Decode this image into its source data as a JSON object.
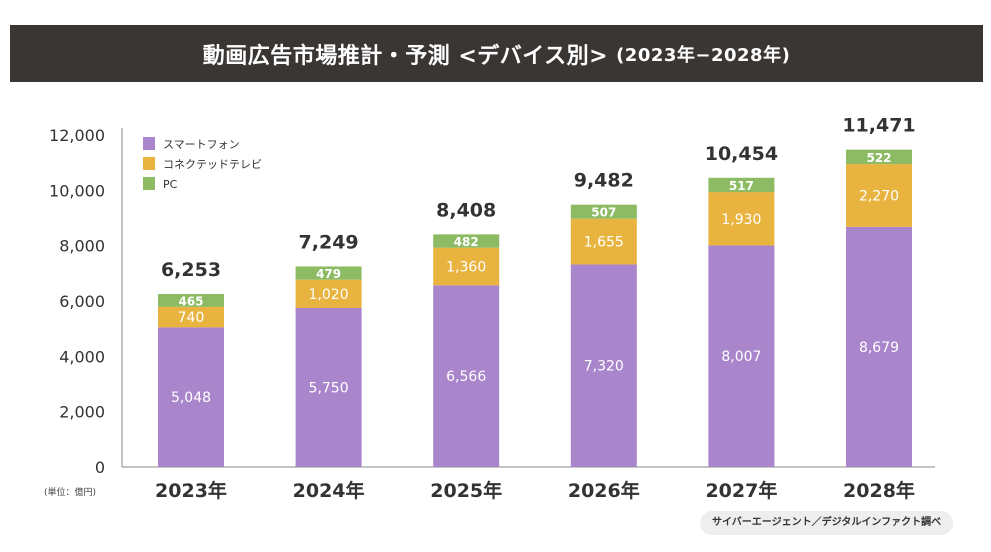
{
  "title": "動画広告市場推計・予測 <デバイス別>",
  "title_period": "(2023年−2028年)",
  "unit_label": "(単位：億円)",
  "source": "サイバーエージェント／デジタルインファクト調べ",
  "chart_data": {
    "type": "bar",
    "stacked": true,
    "title": "動画広告市場推計・予測 <デバイス別> (2023年−2028年)",
    "categories": [
      "2023年",
      "2024年",
      "2025年",
      "2026年",
      "2027年",
      "2028年"
    ],
    "series": [
      {
        "name": "スマートフォン",
        "color": "#a985cb",
        "values": [
          5048,
          5750,
          6566,
          7320,
          8007,
          8679
        ],
        "labels": [
          "5,048",
          "5,750",
          "6,566",
          "7,320",
          "8,007",
          "8,679"
        ]
      },
      {
        "name": "コネクテッドテレビ",
        "color": "#e8b43f",
        "values": [
          740,
          1020,
          1360,
          1655,
          1930,
          2270
        ],
        "labels": [
          "740",
          "1,020",
          "1,360",
          "1,655",
          "1,930",
          "2,270"
        ]
      },
      {
        "name": "PC",
        "color": "#8dbb63",
        "values": [
          465,
          479,
          482,
          507,
          517,
          522
        ],
        "labels": [
          "465",
          "479",
          "482",
          "507",
          "517",
          "522"
        ]
      }
    ],
    "totals": [
      6253,
      7249,
      8408,
      9482,
      10454,
      11471
    ],
    "total_labels": [
      "6,253",
      "7,249",
      "8,408",
      "9,482",
      "10,454",
      "11,471"
    ],
    "yticks": [
      0,
      2000,
      4000,
      6000,
      8000,
      10000,
      12000
    ],
    "ytick_labels": [
      "0",
      "2,000",
      "4,000",
      "6,000",
      "8,000",
      "10,000",
      "12,000"
    ],
    "ylim": [
      0,
      12000
    ],
    "xlabel": "",
    "ylabel": "",
    "legend": "top-left",
    "grid": false
  }
}
